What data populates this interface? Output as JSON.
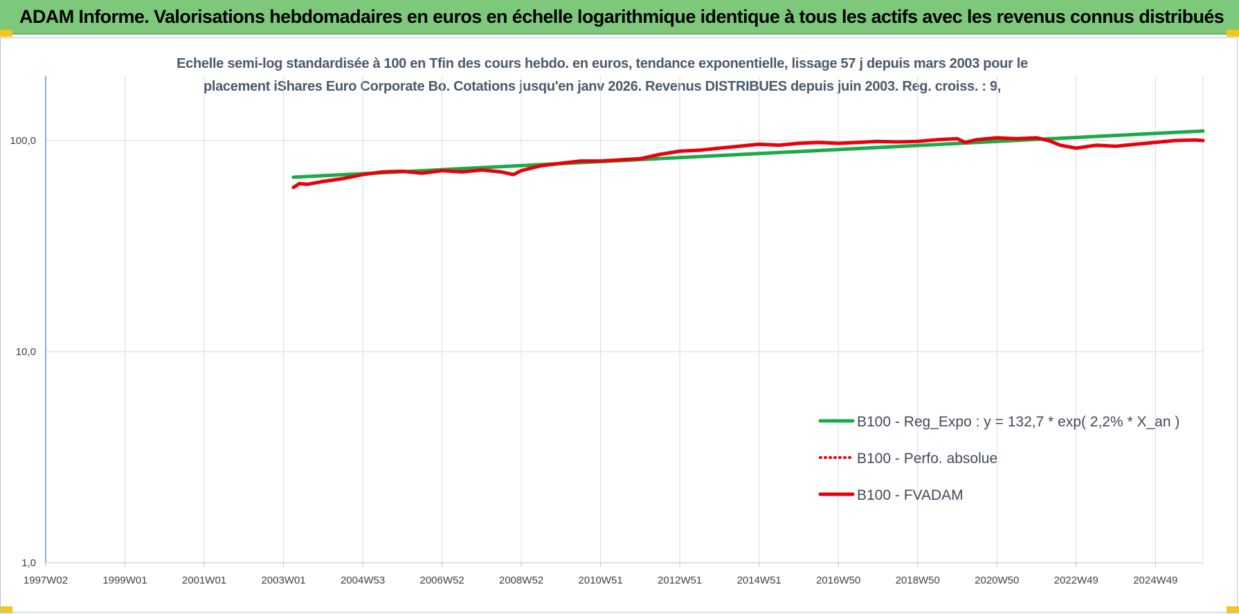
{
  "banner": {
    "title": "ADAM Informe. Valorisations hebdomadaires en euros en échelle logarithmique identique à tous les actifs avec les revenus connus distribués"
  },
  "colors": {
    "banner_bg": "#7dc87a",
    "accent_corner": "#f5c518",
    "regression_line": "#1aaa4a",
    "fvadam_line": "#e8000b",
    "perf_line": "#e8000b",
    "gridline": "#d9d9d9",
    "axis_line": "#4472c4"
  },
  "chart_data": {
    "type": "line",
    "title_line1": "Echelle semi-log standardisée à 100 en Tfin des cours hebdo. en euros, tendance exponentielle, lissage 57 j depuis mars 2003 pour le",
    "title_line2": "placement iShares Euro Corporate Bo. Cotations jusqu'en janv 2026. Revenus DISTRIBUES depuis juin 2003. Reg. croiss. : 9,",
    "xlabel": "",
    "ylabel": "",
    "y_scale": "log",
    "ylim": [
      1,
      200
    ],
    "xlim": [
      1997.0,
      2026.2
    ],
    "grid": true,
    "legend_position": "right-middle",
    "y_ticks": [
      {
        "value": 1,
        "label": "1,0"
      },
      {
        "value": 10,
        "label": "10,0"
      },
      {
        "value": 100,
        "label": "100,0"
      }
    ],
    "x_ticks": [
      {
        "value": 1997.0,
        "label": "1997W02"
      },
      {
        "value": 1999.0,
        "label": "1999W01"
      },
      {
        "value": 2001.0,
        "label": "2001W01"
      },
      {
        "value": 2003.0,
        "label": "2003W01"
      },
      {
        "value": 2005.0,
        "label": "2004W53"
      },
      {
        "value": 2007.0,
        "label": "2006W52"
      },
      {
        "value": 2009.0,
        "label": "2008W52"
      },
      {
        "value": 2011.0,
        "label": "2010W51"
      },
      {
        "value": 2013.0,
        "label": "2012W51"
      },
      {
        "value": 2015.0,
        "label": "2014W51"
      },
      {
        "value": 2017.0,
        "label": "2016W50"
      },
      {
        "value": 2019.0,
        "label": "2018W50"
      },
      {
        "value": 2021.0,
        "label": "2020W50"
      },
      {
        "value": 2023.0,
        "label": "2022W49"
      },
      {
        "value": 2025.0,
        "label": "2024W49"
      }
    ],
    "series": [
      {
        "name": "B100 - Reg_Expo : y = 132,7 * exp( 2,2% *  X_an )",
        "style": "solid-thick",
        "color": "#1aaa4a",
        "x": [
          2003.25,
          2026.2
        ],
        "y": [
          67.0,
          111.0
        ]
      },
      {
        "name": "B100 - Perfo. absolue",
        "style": "dotted",
        "color": "#e8000b",
        "x": [],
        "y": []
      },
      {
        "name": "B100 - FVADAM",
        "style": "solid-thick",
        "color": "#e8000b",
        "x": [
          2003.25,
          2003.4,
          2003.6,
          2004.0,
          2004.5,
          2005.0,
          2005.5,
          2006.0,
          2006.5,
          2007.0,
          2007.5,
          2008.0,
          2008.5,
          2008.8,
          2009.0,
          2009.5,
          2010.0,
          2010.5,
          2011.0,
          2011.5,
          2012.0,
          2012.5,
          2013.0,
          2013.5,
          2014.0,
          2014.5,
          2015.0,
          2015.5,
          2016.0,
          2016.5,
          2017.0,
          2017.5,
          2018.0,
          2018.5,
          2019.0,
          2019.5,
          2020.0,
          2020.2,
          2020.5,
          2021.0,
          2021.5,
          2022.0,
          2022.3,
          2022.6,
          2023.0,
          2023.5,
          2024.0,
          2024.5,
          2025.0,
          2025.5,
          2026.0,
          2026.2
        ],
        "y": [
          60.0,
          62.5,
          62.0,
          64.0,
          66.0,
          69.0,
          71.0,
          71.5,
          70.0,
          72.0,
          71.0,
          72.5,
          71.0,
          69.0,
          72.0,
          76.0,
          78.0,
          80.0,
          80.0,
          81.0,
          82.0,
          86.0,
          89.0,
          90.0,
          92.0,
          94.0,
          96.0,
          95.0,
          97.0,
          98.0,
          97.0,
          98.0,
          99.0,
          98.5,
          99.0,
          101.0,
          102.0,
          98.0,
          101.0,
          103.0,
          102.0,
          103.0,
          100.0,
          95.0,
          92.0,
          95.0,
          94.0,
          96.0,
          98.0,
          100.0,
          100.5,
          100.0
        ]
      }
    ]
  }
}
